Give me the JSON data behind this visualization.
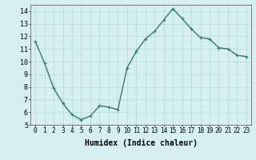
{
  "x": [
    0,
    1,
    2,
    3,
    4,
    5,
    6,
    7,
    8,
    9,
    10,
    11,
    12,
    13,
    14,
    15,
    16,
    17,
    18,
    19,
    20,
    21,
    22,
    23
  ],
  "y": [
    11.6,
    9.9,
    7.9,
    6.7,
    5.8,
    5.4,
    5.7,
    6.5,
    6.4,
    6.2,
    9.5,
    10.8,
    11.8,
    12.4,
    13.3,
    14.2,
    13.4,
    12.6,
    11.9,
    11.8,
    11.1,
    11.0,
    10.5,
    10.4
  ],
  "line_color": "#2e7d6e",
  "marker": "+",
  "markersize": 3.5,
  "linewidth": 1.0,
  "xlabel": "Humidex (Indice chaleur)",
  "xlabel_fontsize": 7,
  "bg_color": "#d6f0ef",
  "grid_color": "#b0d8d4",
  "xlim": [
    -0.5,
    23.5
  ],
  "ylim": [
    5,
    14.5
  ],
  "yticks": [
    5,
    6,
    7,
    8,
    9,
    10,
    11,
    12,
    13,
    14
  ],
  "xticks": [
    0,
    1,
    2,
    3,
    4,
    5,
    6,
    7,
    8,
    9,
    10,
    11,
    12,
    13,
    14,
    15,
    16,
    17,
    18,
    19,
    20,
    21,
    22,
    23
  ],
  "tick_fontsize": 5.5,
  "ytick_fontsize": 6.0
}
